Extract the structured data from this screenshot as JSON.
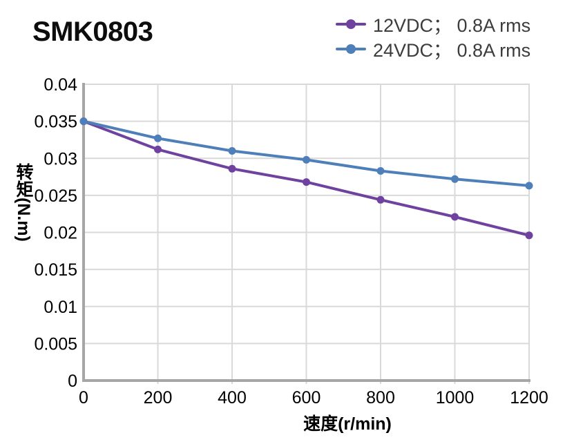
{
  "title": "SMK0803",
  "chart_data": {
    "type": "line",
    "title": "SMK0803",
    "xlabel": "速度(r/min)",
    "ylabel": "转矩(N.m)",
    "x": [
      0,
      200,
      400,
      600,
      800,
      1000,
      1200
    ],
    "series": [
      {
        "name": "12VDC； 0.8A rms",
        "color": "#6F42A0",
        "values": [
          0.035,
          0.0312,
          0.0286,
          0.0268,
          0.0244,
          0.0221,
          0.0196
        ]
      },
      {
        "name": "24VDC； 0.8A rms",
        "color": "#4E7FB9",
        "values": [
          0.035,
          0.0327,
          0.031,
          0.0298,
          0.0283,
          0.0272,
          0.0263
        ]
      }
    ],
    "xlim": [
      0,
      1200
    ],
    "ylim": [
      0,
      0.04
    ],
    "x_ticks": [
      0,
      200,
      400,
      600,
      800,
      1000,
      1200
    ],
    "x_tick_labels": [
      "0",
      "200",
      "400",
      "600",
      "800",
      "1000",
      "1200"
    ],
    "y_ticks": [
      0,
      0.005,
      0.01,
      0.015,
      0.02,
      0.025,
      0.03,
      0.035,
      0.04
    ],
    "y_tick_labels": [
      "0",
      "0.005",
      "0.01",
      "0.015",
      "0.02",
      "0.025",
      "0.03",
      "0.035",
      "0.04"
    ],
    "grid": true,
    "legend_position": "top-right",
    "marker": "circle",
    "colors": {
      "gridline": "#D9D9D9",
      "axis": "#A6A6A6",
      "tick_text": "#000000",
      "legend_text": "#3C3C3C"
    }
  }
}
